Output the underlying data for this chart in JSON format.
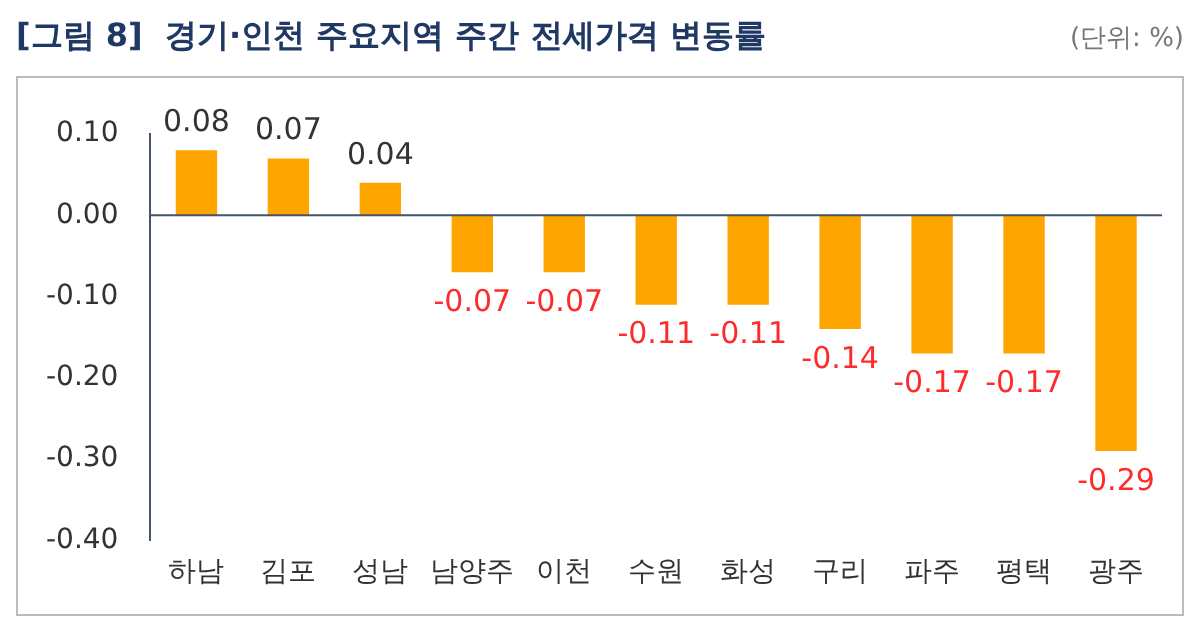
{
  "chart_data": {
    "type": "bar",
    "title": "[그림 8]  경기·인천 주요지역 주간 전세가격 변동률",
    "annotations": [
      "(단위: %)"
    ],
    "categories": [
      "하남",
      "김포",
      "성남",
      "남양주",
      "이천",
      "수원",
      "화성",
      "구리",
      "파주",
      "평택",
      "광주"
    ],
    "values": [
      0.08,
      0.07,
      0.04,
      -0.07,
      -0.07,
      -0.11,
      -0.11,
      -0.14,
      -0.17,
      -0.17,
      -0.29
    ],
    "value_labels": [
      "0.08",
      "0.07",
      "0.04",
      "-0.07",
      "-0.07",
      "-0.11",
      "-0.11",
      "-0.14",
      "-0.17",
      "-0.17",
      "-0.29"
    ],
    "color": "#ffa500",
    "ylim": [
      -0.4,
      0.1
    ],
    "yticks": [
      {
        "value": -0.4,
        "label": "-0.40"
      },
      {
        "value": -0.3,
        "label": "-0.30"
      },
      {
        "value": -0.2,
        "label": "-0.20"
      },
      {
        "value": -0.1,
        "label": "-0.10"
      },
      {
        "value": 0,
        "label": "0.00"
      },
      {
        "value": 0.1,
        "label": "0.10"
      }
    ],
    "legend": false
  }
}
